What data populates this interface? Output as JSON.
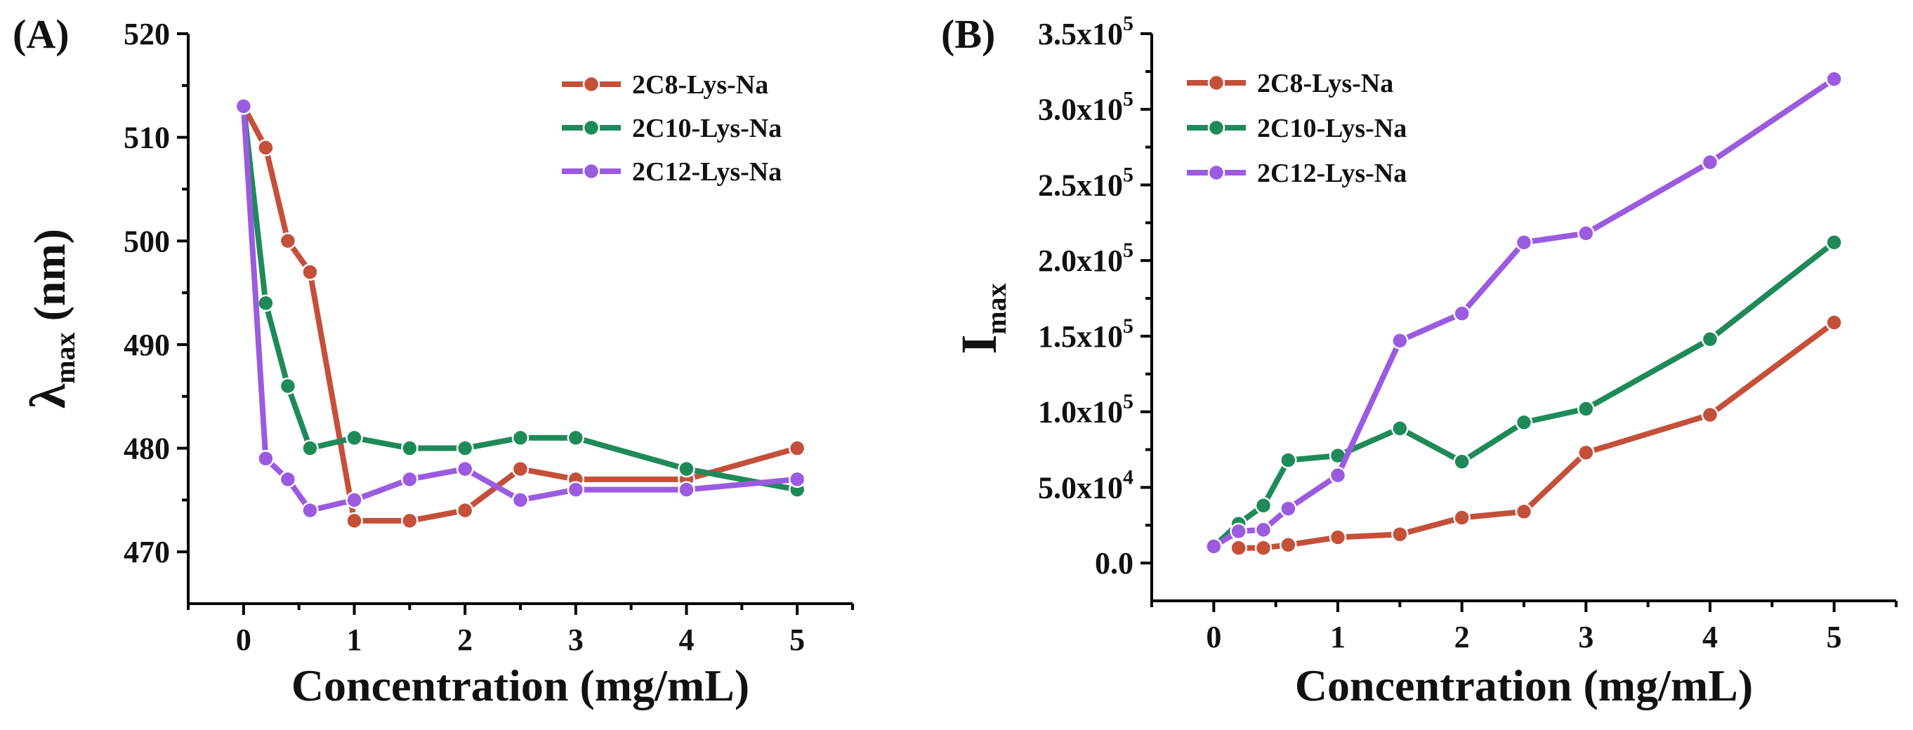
{
  "chart_data": [
    {
      "panel_label": "(A)",
      "type": "line",
      "xlabel": "Concentration (mg/mL)",
      "ylabel_main": "λ",
      "ylabel_sub": "max",
      "ylabel_unit": " (nm)",
      "xlim": [
        -0.5,
        5.5
      ],
      "ylim": [
        465,
        520
      ],
      "xticks": [
        0,
        1,
        2,
        3,
        4,
        5
      ],
      "yticks": [
        470,
        480,
        490,
        500,
        510,
        520
      ],
      "legend_position": "top-right",
      "series": [
        {
          "name": "2C8-Lys-Na",
          "color": "#c4503a",
          "x": [
            0,
            0.2,
            0.4,
            0.6,
            1,
            1.5,
            2,
            2.5,
            3,
            4,
            5
          ],
          "y": [
            513,
            509,
            500,
            497,
            473,
            473,
            474,
            478,
            477,
            477,
            480
          ]
        },
        {
          "name": "2C10-Lys-Na",
          "color": "#1e8a5a",
          "x": [
            0,
            0.2,
            0.4,
            0.6,
            1,
            1.5,
            2,
            2.5,
            3,
            4,
            5
          ],
          "y": [
            513,
            494,
            486,
            480,
            481,
            480,
            480,
            481,
            481,
            478,
            476
          ]
        },
        {
          "name": "2C12-Lys-Na",
          "color": "#9b5be0",
          "x": [
            0,
            0.2,
            0.4,
            0.6,
            1,
            1.5,
            2,
            2.5,
            3,
            4,
            5
          ],
          "y": [
            513,
            479,
            477,
            474,
            475,
            477,
            478,
            475,
            476,
            476,
            477
          ]
        }
      ]
    },
    {
      "panel_label": "(B)",
      "type": "line",
      "xlabel": "Concentration (mg/mL)",
      "ylabel_main": "I",
      "ylabel_sub": "max",
      "ylabel_unit": "",
      "xlim": [
        -0.5,
        5.5
      ],
      "ylim": [
        -25000,
        350000
      ],
      "xticks": [
        0,
        1,
        2,
        3,
        4,
        5
      ],
      "yticks": [
        0,
        50000,
        100000,
        150000,
        200000,
        250000,
        300000,
        350000
      ],
      "ytick_labels": [
        {
          "mant": "0.0",
          "exp": ""
        },
        {
          "mant": "5.0x10",
          "exp": "4"
        },
        {
          "mant": "1.0x10",
          "exp": "5"
        },
        {
          "mant": "1.5x10",
          "exp": "5"
        },
        {
          "mant": "2.0x10",
          "exp": "5"
        },
        {
          "mant": "2.5x10",
          "exp": "5"
        },
        {
          "mant": "3.0x10",
          "exp": "5"
        },
        {
          "mant": "3.5x10",
          "exp": "5"
        }
      ],
      "legend_position": "top-left",
      "series": [
        {
          "name": "2C8-Lys-Na",
          "color": "#c4503a",
          "x": [
            0.2,
            0.4,
            0.6,
            1,
            1.5,
            2,
            2.5,
            3,
            4,
            5
          ],
          "y": [
            10000,
            10000,
            12000,
            17000,
            19000,
            30000,
            34000,
            73000,
            98000,
            159000
          ]
        },
        {
          "name": "2C10-Lys-Na",
          "color": "#1e8a5a",
          "x": [
            0,
            0.2,
            0.4,
            0.6,
            1,
            1.5,
            2,
            2.5,
            3,
            4,
            5
          ],
          "y": [
            11000,
            26000,
            38000,
            68000,
            71000,
            89000,
            67000,
            93000,
            102000,
            148000,
            212000
          ]
        },
        {
          "name": "2C12-Lys-Na",
          "color": "#9b5be0",
          "x": [
            0,
            0.2,
            0.4,
            0.6,
            1,
            1.5,
            2,
            2.5,
            3,
            4,
            5
          ],
          "y": [
            11000,
            21000,
            22000,
            36000,
            58000,
            147000,
            165000,
            212000,
            218000,
            265000,
            320000
          ]
        }
      ]
    }
  ]
}
